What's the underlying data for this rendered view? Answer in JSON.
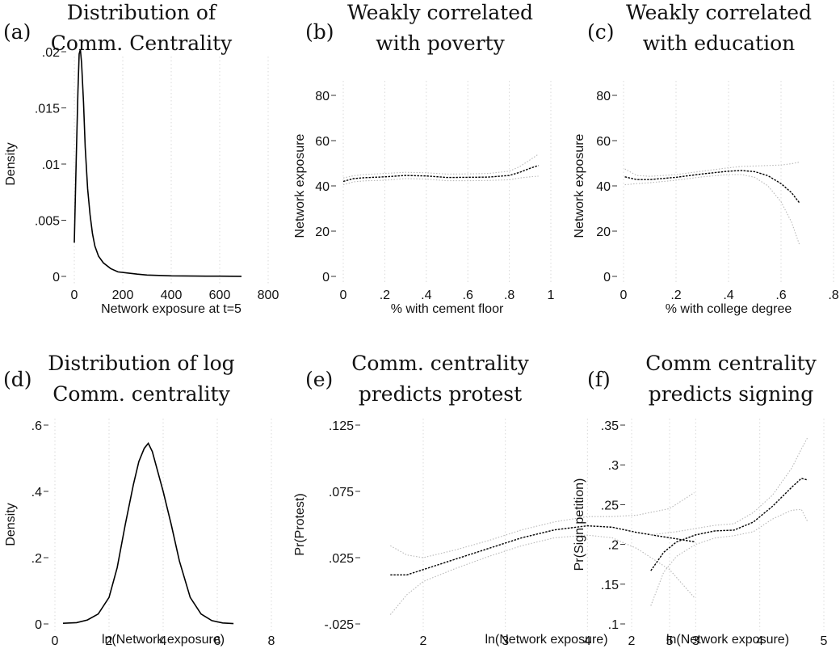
{
  "chart_data": [
    {
      "id": "a",
      "type": "line",
      "panel_letter": "(a)",
      "title": [
        "Distribution of",
        "Comm. Centrality"
      ],
      "xlabel": "Network exposure at t=5",
      "ylabel": "Density",
      "xlim": [
        -15,
        800
      ],
      "ylim": [
        -0.001,
        0.0215
      ],
      "xticks": [
        0,
        200,
        400,
        600,
        800
      ],
      "xtick_labels": [
        "0",
        "200",
        "400",
        "600",
        "800"
      ],
      "yticks": [
        0,
        0.005,
        0.01,
        0.015,
        0.02
      ],
      "ytick_labels": [
        "0",
        ".005",
        ".01",
        ".015",
        ".02"
      ],
      "grid": "vertical",
      "series": [
        {
          "style": "solid",
          "x": [
            0,
            8,
            15,
            20,
            25,
            30,
            38,
            45,
            55,
            65,
            75,
            85,
            100,
            120,
            150,
            180,
            220,
            260,
            300,
            400,
            500,
            600,
            690
          ],
          "y": [
            0.003,
            0.0105,
            0.0165,
            0.0198,
            0.0202,
            0.019,
            0.0155,
            0.0115,
            0.0078,
            0.0055,
            0.0038,
            0.0027,
            0.0018,
            0.0012,
            0.0007,
            0.0004,
            0.0003,
            0.0002,
            0.00012,
            5e-05,
            3e-05,
            2e-05,
            1e-05
          ]
        }
      ]
    },
    {
      "id": "b",
      "type": "line",
      "panel_letter": "(b)",
      "title": [
        "Weakly correlated",
        "with poverty"
      ],
      "xlabel": "% with cement floor",
      "ylabel": "Network exposure",
      "xlim": [
        -0.02,
        1.0
      ],
      "ylim": [
        -3,
        90
      ],
      "xticks": [
        0,
        0.2,
        0.4,
        0.6,
        0.8,
        1
      ],
      "xtick_labels": [
        "0",
        ".2",
        ".4",
        ".6",
        ".8",
        "1"
      ],
      "yticks": [
        0,
        20,
        40,
        60,
        80
      ],
      "ytick_labels": [
        "0",
        "20",
        "40",
        "60",
        "80"
      ],
      "grid": "vertical",
      "series": [
        {
          "style": "dashed",
          "x": [
            0,
            0.05,
            0.1,
            0.2,
            0.3,
            0.4,
            0.5,
            0.6,
            0.7,
            0.8,
            0.85,
            0.9,
            0.94
          ],
          "y": [
            42,
            43.2,
            43.6,
            44,
            44.6,
            44.4,
            43.7,
            43.8,
            43.9,
            44.6,
            46,
            47.8,
            49
          ]
        },
        {
          "style": "ci",
          "x": [
            0,
            0.05,
            0.1,
            0.2,
            0.3,
            0.4,
            0.5,
            0.6,
            0.7,
            0.8,
            0.85,
            0.9,
            0.94
          ],
          "y": [
            43.5,
            44.5,
            45,
            45.5,
            46,
            45.8,
            45.2,
            45.3,
            45.5,
            46.5,
            48.5,
            51.5,
            54
          ]
        },
        {
          "style": "ci",
          "x": [
            0,
            0.05,
            0.1,
            0.2,
            0.3,
            0.4,
            0.5,
            0.6,
            0.7,
            0.8,
            0.85,
            0.9,
            0.94
          ],
          "y": [
            40.5,
            41.8,
            42.2,
            42.5,
            43.2,
            43,
            42.3,
            42.3,
            42.4,
            42.7,
            43.5,
            44,
            44.3
          ]
        }
      ]
    },
    {
      "id": "c",
      "type": "line",
      "panel_letter": "(c)",
      "title": [
        "Weakly correlated",
        "with education"
      ],
      "xlabel": "% with college degree",
      "ylabel": "Network exposure",
      "xlim": [
        -0.015,
        0.8
      ],
      "ylim": [
        -3,
        90
      ],
      "xticks": [
        0,
        0.2,
        0.4,
        0.6,
        0.8
      ],
      "xtick_labels": [
        "0",
        ".2",
        ".4",
        ".6",
        ".8"
      ],
      "yticks": [
        0,
        20,
        40,
        60,
        80
      ],
      "ytick_labels": [
        "0",
        "20",
        "40",
        "60",
        "80"
      ],
      "grid": "vertical",
      "series": [
        {
          "style": "dashed",
          "x": [
            0.005,
            0.05,
            0.1,
            0.2,
            0.3,
            0.4,
            0.45,
            0.5,
            0.55,
            0.6,
            0.64,
            0.67
          ],
          "y": [
            44,
            42.8,
            42.8,
            43.8,
            45.3,
            46.5,
            46.8,
            46.3,
            44.5,
            41,
            37,
            32.5
          ]
        },
        {
          "style": "ci",
          "x": [
            0.005,
            0.05,
            0.1,
            0.2,
            0.3,
            0.4,
            0.45,
            0.5,
            0.55,
            0.6,
            0.64,
            0.67
          ],
          "y": [
            47.5,
            44.6,
            44.2,
            45,
            46.5,
            48,
            48.6,
            48.8,
            49,
            49.2,
            49.8,
            50.5
          ]
        },
        {
          "style": "ci",
          "x": [
            0.005,
            0.05,
            0.1,
            0.2,
            0.3,
            0.4,
            0.45,
            0.5,
            0.55,
            0.6,
            0.64,
            0.67
          ],
          "y": [
            40.5,
            41,
            41.4,
            42.5,
            44,
            45,
            45,
            43.8,
            40,
            33,
            24,
            14
          ]
        }
      ]
    },
    {
      "id": "d",
      "type": "line",
      "panel_letter": "(d)",
      "title": [
        "Distribution of log",
        "Comm. centrality"
      ],
      "xlabel": "ln(Network exposure)",
      "ylabel": "Density",
      "xlim": [
        -0.15,
        8.1
      ],
      "ylim": [
        -0.015,
        0.615
      ],
      "xticks": [
        0,
        2,
        4,
        6,
        8
      ],
      "xtick_labels": [
        "0",
        "2",
        "4",
        "6",
        "8"
      ],
      "yticks": [
        0,
        0.2,
        0.4,
        0.6
      ],
      "ytick_labels": [
        "0",
        ".2",
        ".4",
        ".6"
      ],
      "grid": "vertical",
      "series": [
        {
          "style": "solid",
          "x": [
            0.3,
            0.8,
            1.2,
            1.6,
            2.0,
            2.3,
            2.6,
            2.9,
            3.1,
            3.3,
            3.45,
            3.6,
            3.8,
            4.0,
            4.3,
            4.6,
            5.0,
            5.4,
            5.8,
            6.2,
            6.6
          ],
          "y": [
            0.002,
            0.004,
            0.012,
            0.03,
            0.08,
            0.17,
            0.3,
            0.42,
            0.49,
            0.53,
            0.545,
            0.52,
            0.46,
            0.4,
            0.3,
            0.19,
            0.08,
            0.03,
            0.01,
            0.003,
            0.001
          ]
        }
      ]
    },
    {
      "id": "e",
      "type": "line",
      "panel_letter": "(e)",
      "title": [
        "Comm. centrality",
        "predicts protest"
      ],
      "xlabel": "ln(Network exposure)",
      "ylabel": "Pr(Protest)",
      "xlim": [
        1.3,
        5.6
      ],
      "ylim": [
        -0.028,
        0.128
      ],
      "xticks": [
        2,
        3,
        4,
        5
      ],
      "xtick_labels": [
        "2",
        "3",
        "4",
        "5"
      ],
      "yticks": [
        -0.025,
        0.025,
        0.075,
        0.125
      ],
      "ytick_labels": [
        "-.025",
        ".025",
        ".075",
        ".125"
      ],
      "grid": "vertical",
      "series": [
        {
          "style": "dashed",
          "x": [
            1.6,
            1.8,
            2.0,
            2.4,
            2.8,
            3.2,
            3.6,
            4.0,
            4.3,
            4.6,
            5.0,
            5.3
          ],
          "y": [
            0.012,
            0.012,
            0.016,
            0.024,
            0.032,
            0.04,
            0.046,
            0.049,
            0.048,
            0.044,
            0.04,
            0.037
          ]
        },
        {
          "style": "ci",
          "x": [
            1.6,
            1.8,
            2.0,
            2.4,
            2.8,
            3.2,
            3.6,
            4.0,
            4.3,
            4.6,
            5.0,
            5.3
          ],
          "y": [
            0.034,
            0.027,
            0.025,
            0.031,
            0.038,
            0.046,
            0.052,
            0.056,
            0.056,
            0.057,
            0.062,
            0.074
          ]
        },
        {
          "style": "ci",
          "x": [
            1.6,
            1.8,
            2.0,
            2.4,
            2.8,
            3.2,
            3.6,
            4.0,
            4.3,
            4.6,
            5.0,
            5.3
          ],
          "y": [
            -0.018,
            -0.003,
            0.007,
            0.017,
            0.026,
            0.034,
            0.04,
            0.042,
            0.04,
            0.032,
            0.016,
            -0.005
          ]
        }
      ]
    },
    {
      "id": "f",
      "type": "line",
      "panel_letter": "(f)",
      "title": [
        "Comm centrality",
        "predicts signing"
      ],
      "xlabel": "ln(Network exposure)",
      "ylabel": "Pr(Sign petition)",
      "xlim": [
        1.9,
        5.1
      ],
      "ylim": [
        0.095,
        0.355
      ],
      "xticks": [
        2,
        3,
        4,
        5
      ],
      "xtick_labels": [
        "2",
        "3",
        "4",
        "5"
      ],
      "yticks": [
        0.1,
        0.15,
        0.2,
        0.25,
        0.3,
        0.35
      ],
      "ytick_labels": [
        ".1",
        ".15",
        ".2",
        ".25",
        ".3",
        ".35"
      ],
      "grid": "vertical",
      "series": [
        {
          "style": "dashed",
          "x": [
            2.3,
            2.5,
            2.7,
            3.0,
            3.3,
            3.6,
            3.9,
            4.2,
            4.5,
            4.65,
            4.75
          ],
          "y": [
            0.167,
            0.19,
            0.203,
            0.212,
            0.217,
            0.218,
            0.228,
            0.248,
            0.272,
            0.283,
            0.281
          ]
        },
        {
          "style": "ci",
          "x": [
            2.3,
            2.5,
            2.7,
            3.0,
            3.3,
            3.6,
            3.9,
            4.2,
            4.5,
            4.65,
            4.75
          ],
          "y": [
            0.212,
            0.214,
            0.216,
            0.22,
            0.224,
            0.226,
            0.24,
            0.262,
            0.296,
            0.32,
            0.335
          ]
        },
        {
          "style": "ci",
          "x": [
            2.3,
            2.5,
            2.7,
            3.0,
            3.3,
            3.6,
            3.9,
            4.2,
            4.5,
            4.65,
            4.75
          ],
          "y": [
            0.123,
            0.165,
            0.185,
            0.2,
            0.208,
            0.211,
            0.216,
            0.232,
            0.243,
            0.244,
            0.228
          ]
        }
      ]
    }
  ]
}
